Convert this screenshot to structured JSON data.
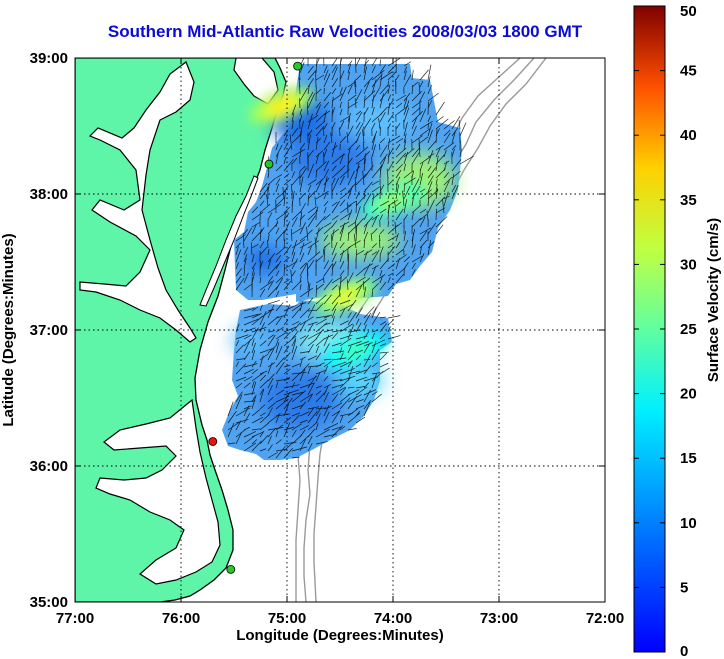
{
  "chart_data": {
    "type": "heatmap",
    "title": "Southern Mid-Atlantic Raw Velocities 2008/03/03 1800 GMT",
    "xlabel": "Longitude (Degrees:Minutes)",
    "ylabel": "Latitude (Degrees:Minutes)",
    "x_ticks": [
      {
        "value": -77,
        "label": "77:00"
      },
      {
        "value": -76,
        "label": "76:00"
      },
      {
        "value": -75,
        "label": "75:00"
      },
      {
        "value": -74,
        "label": "74:00"
      },
      {
        "value": -73,
        "label": "73:00"
      },
      {
        "value": -72,
        "label": "72:00"
      }
    ],
    "y_ticks": [
      {
        "value": 35,
        "label": "35:00"
      },
      {
        "value": 36,
        "label": "36:00"
      },
      {
        "value": 37,
        "label": "37:00"
      },
      {
        "value": 38,
        "label": "38:00"
      },
      {
        "value": 39,
        "label": "39:00"
      }
    ],
    "xlim": [
      -77,
      -72
    ],
    "ylim": [
      35,
      39
    ],
    "grid": true,
    "colorbar": {
      "label": "Surface Velocity (cm/s)",
      "range": [
        0,
        50
      ],
      "ticks": [
        "0",
        "5",
        "10",
        "15",
        "20",
        "25",
        "30",
        "35",
        "40",
        "45",
        "50"
      ],
      "colormap": "jet"
    },
    "colors": {
      "land": "#5ef5a8",
      "coastline": "#000000",
      "bathymetry": "#9a9a9a",
      "grid": "#000000"
    },
    "stations": [
      {
        "lon": -74.9,
        "lat": 38.94,
        "color": "#22cc22"
      },
      {
        "lon": -75.17,
        "lat": 38.22,
        "color": "#22cc22"
      },
      {
        "lon": -75.7,
        "lat": 36.18,
        "color": "#ee1111"
      },
      {
        "lon": -75.53,
        "lat": 35.24,
        "color": "#22cc22"
      }
    ],
    "hotspots": [
      {
        "lon": -74.45,
        "lat": 37.25,
        "speed": 30
      },
      {
        "lon": -74.0,
        "lat": 37.95,
        "speed": 26
      },
      {
        "lon": -75.05,
        "lat": 38.65,
        "speed": 32
      },
      {
        "lon": -74.35,
        "lat": 36.85,
        "speed": 22
      }
    ]
  }
}
